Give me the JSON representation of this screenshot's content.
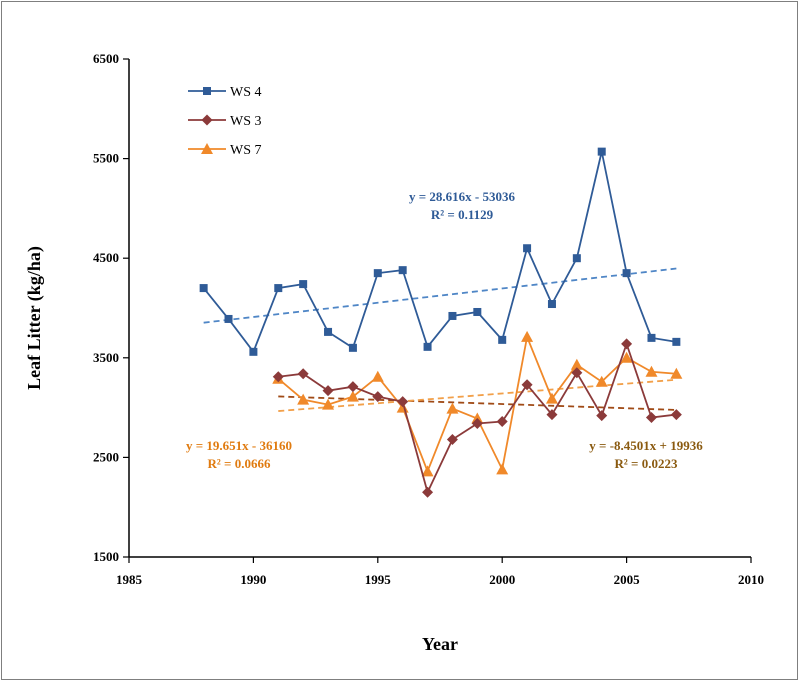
{
  "chart_data": {
    "type": "line",
    "xlabel": "Year",
    "ylabel": "Leaf Litter (kg/ha)",
    "xlim": [
      1985,
      2010
    ],
    "ylim": [
      1500,
      6500
    ],
    "xticks": [
      1985,
      1990,
      1995,
      2000,
      2005,
      2010
    ],
    "yticks": [
      1500,
      2500,
      3500,
      4500,
      5500,
      6500
    ],
    "grid": false,
    "legend_position": "top-left",
    "series": [
      {
        "name": "WS 4",
        "color": "#2f5b97",
        "marker": "square",
        "x": [
          1988,
          1989,
          1990,
          1991,
          1992,
          1993,
          1994,
          1995,
          1996,
          1997,
          1998,
          1999,
          2000,
          2001,
          2002,
          2003,
          2004,
          2005,
          2006,
          2007
        ],
        "y": [
          4200,
          3890,
          3560,
          4200,
          4240,
          3760,
          3600,
          4350,
          4380,
          3610,
          3920,
          3960,
          3680,
          4600,
          4040,
          4500,
          5570,
          4350,
          3700,
          3660
        ]
      },
      {
        "name": "WS 3",
        "color": "#8b3a3a",
        "marker": "diamond",
        "x": [
          1991,
          1992,
          1993,
          1994,
          1995,
          1996,
          1997,
          1998,
          1999,
          2000,
          2001,
          2002,
          2003,
          2004,
          2005,
          2006,
          2007
        ],
        "y": [
          3310,
          3340,
          3170,
          3210,
          3110,
          3060,
          2150,
          2680,
          2840,
          2860,
          3230,
          2930,
          3350,
          2920,
          3640,
          2900,
          2930
        ]
      },
      {
        "name": "WS 7",
        "color": "#f0892a",
        "marker": "triangle",
        "x": [
          1991,
          1992,
          1993,
          1994,
          1995,
          1996,
          1997,
          1998,
          1999,
          2000,
          2001,
          2002,
          2003,
          2004,
          2005,
          2006,
          2007
        ],
        "y": [
          3290,
          3080,
          3030,
          3110,
          3310,
          3000,
          2360,
          2990,
          2890,
          2380,
          3710,
          3090,
          3430,
          3260,
          3500,
          3360,
          3340
        ]
      }
    ],
    "trendlines": [
      {
        "series": "WS 4",
        "color": "#4f86c6",
        "slope": 28.616,
        "intercept": -53036,
        "x_range": [
          1988,
          2007
        ]
      },
      {
        "series": "WS 3",
        "color": "#a04a16",
        "slope": -8.4501,
        "intercept": 19936,
        "x_range": [
          1991,
          2007
        ]
      },
      {
        "series": "WS 7",
        "color": "#f2a04a",
        "slope": 19.651,
        "intercept": -36160,
        "x_range": [
          1991,
          2007
        ]
      }
    ],
    "annotations": [
      {
        "id": "ws4",
        "line1": "y = 28.616x - 53036",
        "line2": "R² = 0.1129",
        "color": "#2f5b97"
      },
      {
        "id": "ws7",
        "line1": "y = 19.651x - 36160",
        "line2": "R² = 0.0666",
        "color": "#e07b10"
      },
      {
        "id": "ws3",
        "line1": "y = -8.4501x + 19936",
        "line2": "R² = 0.0223",
        "color": "#8a5a10"
      }
    ]
  }
}
